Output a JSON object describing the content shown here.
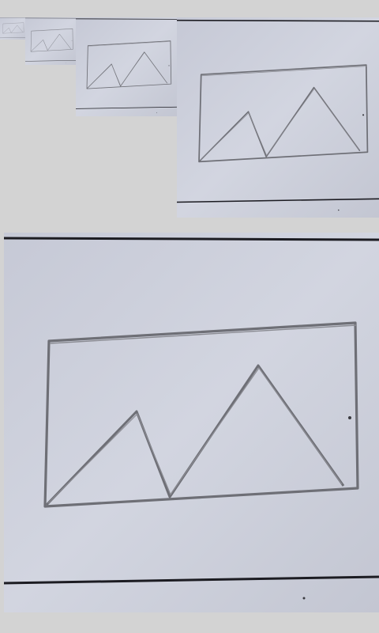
{
  "description_free": true,
  "photos": [
    {
      "id": "photo-1",
      "subject": "pencil-sketch-image-placeholder",
      "scale": "smallest"
    },
    {
      "id": "photo-2",
      "subject": "pencil-sketch-image-placeholder",
      "scale": "small"
    },
    {
      "id": "photo-3",
      "subject": "pencil-sketch-image-placeholder",
      "scale": "medium"
    },
    {
      "id": "photo-4",
      "subject": "pencil-sketch-image-placeholder",
      "scale": "large"
    },
    {
      "id": "photo-5",
      "subject": "pencil-sketch-image-placeholder",
      "scale": "largest"
    }
  ],
  "colors": {
    "background": "#d3d3d3",
    "paper": "#cdd0dc",
    "pencil": "#6e6f76",
    "ink_line": "#1c1c22"
  }
}
